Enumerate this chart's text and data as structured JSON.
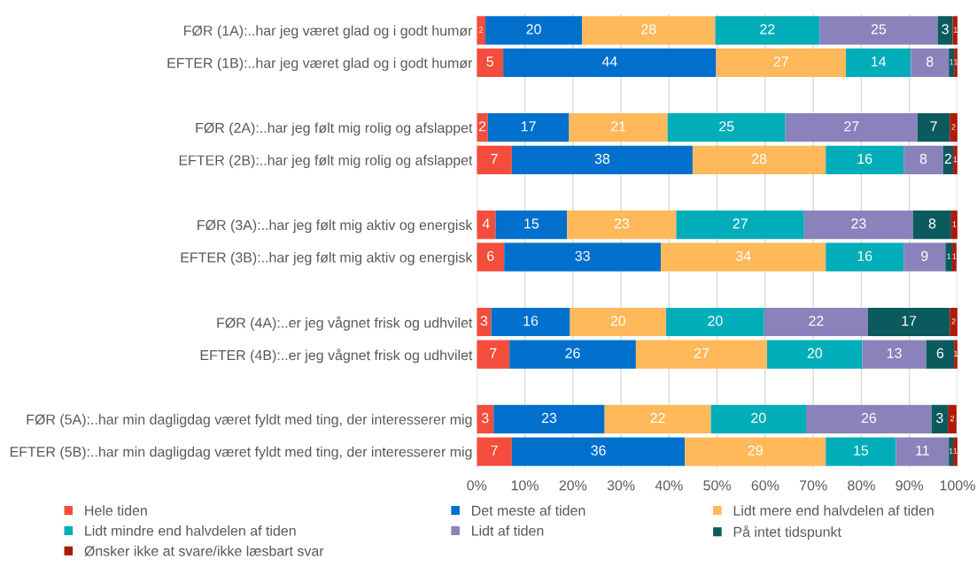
{
  "chart_data": {
    "type": "bar",
    "orientation": "horizontal",
    "stacked": true,
    "categories": [
      "FØR (1A):..har jeg været glad og i godt humør",
      "EFTER (1B):..har jeg været glad og i godt humør",
      null,
      "FØR (2A):..har jeg følt mig rolig og afslappet",
      "EFTER (2B):..har jeg følt mig rolig og afslappet",
      null,
      "FØR (3A):..har jeg følt mig aktiv og energisk",
      "EFTER (3B):..har jeg følt mig aktiv og energisk",
      null,
      "FØR (4A):..er jeg vågnet frisk og udhvilet",
      "EFTER (4B):..er jeg vågnet frisk og udhvilet",
      null,
      "FØR (5A):..har min dagligdag været fyldt med ting, der interesserer mig",
      "EFTER (5B):..har min dagligdag været fyldt med ting, der interesserer mig"
    ],
    "series": [
      {
        "name": "Hele tiden",
        "color": "#f44d3d",
        "values": [
          1.8,
          5.5,
          null,
          2.3,
          7.3,
          null,
          3.9,
          5.7,
          null,
          3.0,
          6.8,
          null,
          3.5,
          7.3
        ],
        "value_labels": [
          "2",
          "5",
          null,
          "2",
          "7",
          null,
          "4",
          "6",
          null,
          "3",
          "7",
          null,
          "3",
          "7"
        ]
      },
      {
        "name": "Det meste af tiden",
        "color": "#0070cc",
        "values": [
          20.1,
          44.3,
          null,
          16.9,
          37.6,
          null,
          14.9,
          32.6,
          null,
          16.4,
          26.3,
          null,
          23.1,
          36.0
        ],
        "value_labels": [
          "20",
          "44",
          null,
          "17",
          "38",
          null,
          "15",
          "33",
          null,
          "16",
          "26",
          null,
          "23",
          "36"
        ]
      },
      {
        "name": "Lidt mere end halvdelen af tiden",
        "color": "#ffb95a",
        "values": [
          27.7,
          27.0,
          null,
          20.5,
          27.7,
          null,
          22.7,
          34.3,
          null,
          20.0,
          27.3,
          null,
          22.1,
          29.3
        ],
        "value_labels": [
          "28",
          "27",
          null,
          "21",
          "28",
          null,
          "23",
          "34",
          null,
          "20",
          "27",
          null,
          "22",
          "29"
        ]
      },
      {
        "name": "Lidt mindre end halvdelen af tiden",
        "color": "#00adb9",
        "values": [
          21.7,
          13.5,
          null,
          24.5,
          16.2,
          null,
          26.6,
          16.2,
          null,
          20.4,
          19.8,
          null,
          19.8,
          14.6
        ],
        "value_labels": [
          "22",
          "14",
          null,
          "25",
          "16",
          null,
          "27",
          "16",
          null,
          "20",
          "20",
          null,
          "20",
          "15"
        ]
      },
      {
        "name": "Lidt af tiden",
        "color": "#8a82ba",
        "values": [
          24.6,
          7.9,
          null,
          27.5,
          8.2,
          null,
          22.7,
          8.7,
          null,
          21.6,
          13.3,
          null,
          26.1,
          11.0
        ],
        "value_labels": [
          "25",
          "8",
          null,
          "27",
          "8",
          null,
          "23",
          "9",
          null,
          "22",
          "13",
          null,
          "26",
          "11"
        ]
      },
      {
        "name": "På intet tidspunkt",
        "color": "#0b5a5d",
        "values": [
          3.1,
          1.1,
          null,
          6.7,
          2.1,
          null,
          7.9,
          1.4,
          null,
          17.0,
          5.8,
          null,
          3.4,
          0.9
        ],
        "value_labels": [
          "3",
          "1",
          null,
          "7",
          "2",
          null,
          "8",
          "1",
          null,
          "17",
          "6",
          null,
          "3",
          "1"
        ]
      },
      {
        "name": "Ønsker ikke at svare/ikke læsbart svar",
        "color": "#b01a0a",
        "values": [
          1.2,
          0.7,
          null,
          1.6,
          0.9,
          null,
          1.3,
          0.9,
          null,
          1.6,
          0.7,
          null,
          1.8,
          0.9
        ],
        "value_labels": [
          "1",
          "1",
          null,
          "2",
          "1",
          null,
          "1",
          "1",
          null,
          "2",
          "1",
          null,
          "2",
          "1"
        ]
      }
    ],
    "xlim": [
      0,
      100
    ],
    "xticks": [
      {
        "value": 0,
        "label": "0%"
      },
      {
        "value": 10,
        "label": "10%"
      },
      {
        "value": 20,
        "label": "20%"
      },
      {
        "value": 30,
        "label": "30%"
      },
      {
        "value": 40,
        "label": "40%"
      },
      {
        "value": 50,
        "label": "50%"
      },
      {
        "value": 60,
        "label": "60%"
      },
      {
        "value": 70,
        "label": "70%"
      },
      {
        "value": 80,
        "label": "80%"
      },
      {
        "value": 90,
        "label": "90%"
      },
      {
        "value": 100,
        "label": "100%"
      }
    ],
    "grid": "x",
    "legend": "bottom"
  }
}
